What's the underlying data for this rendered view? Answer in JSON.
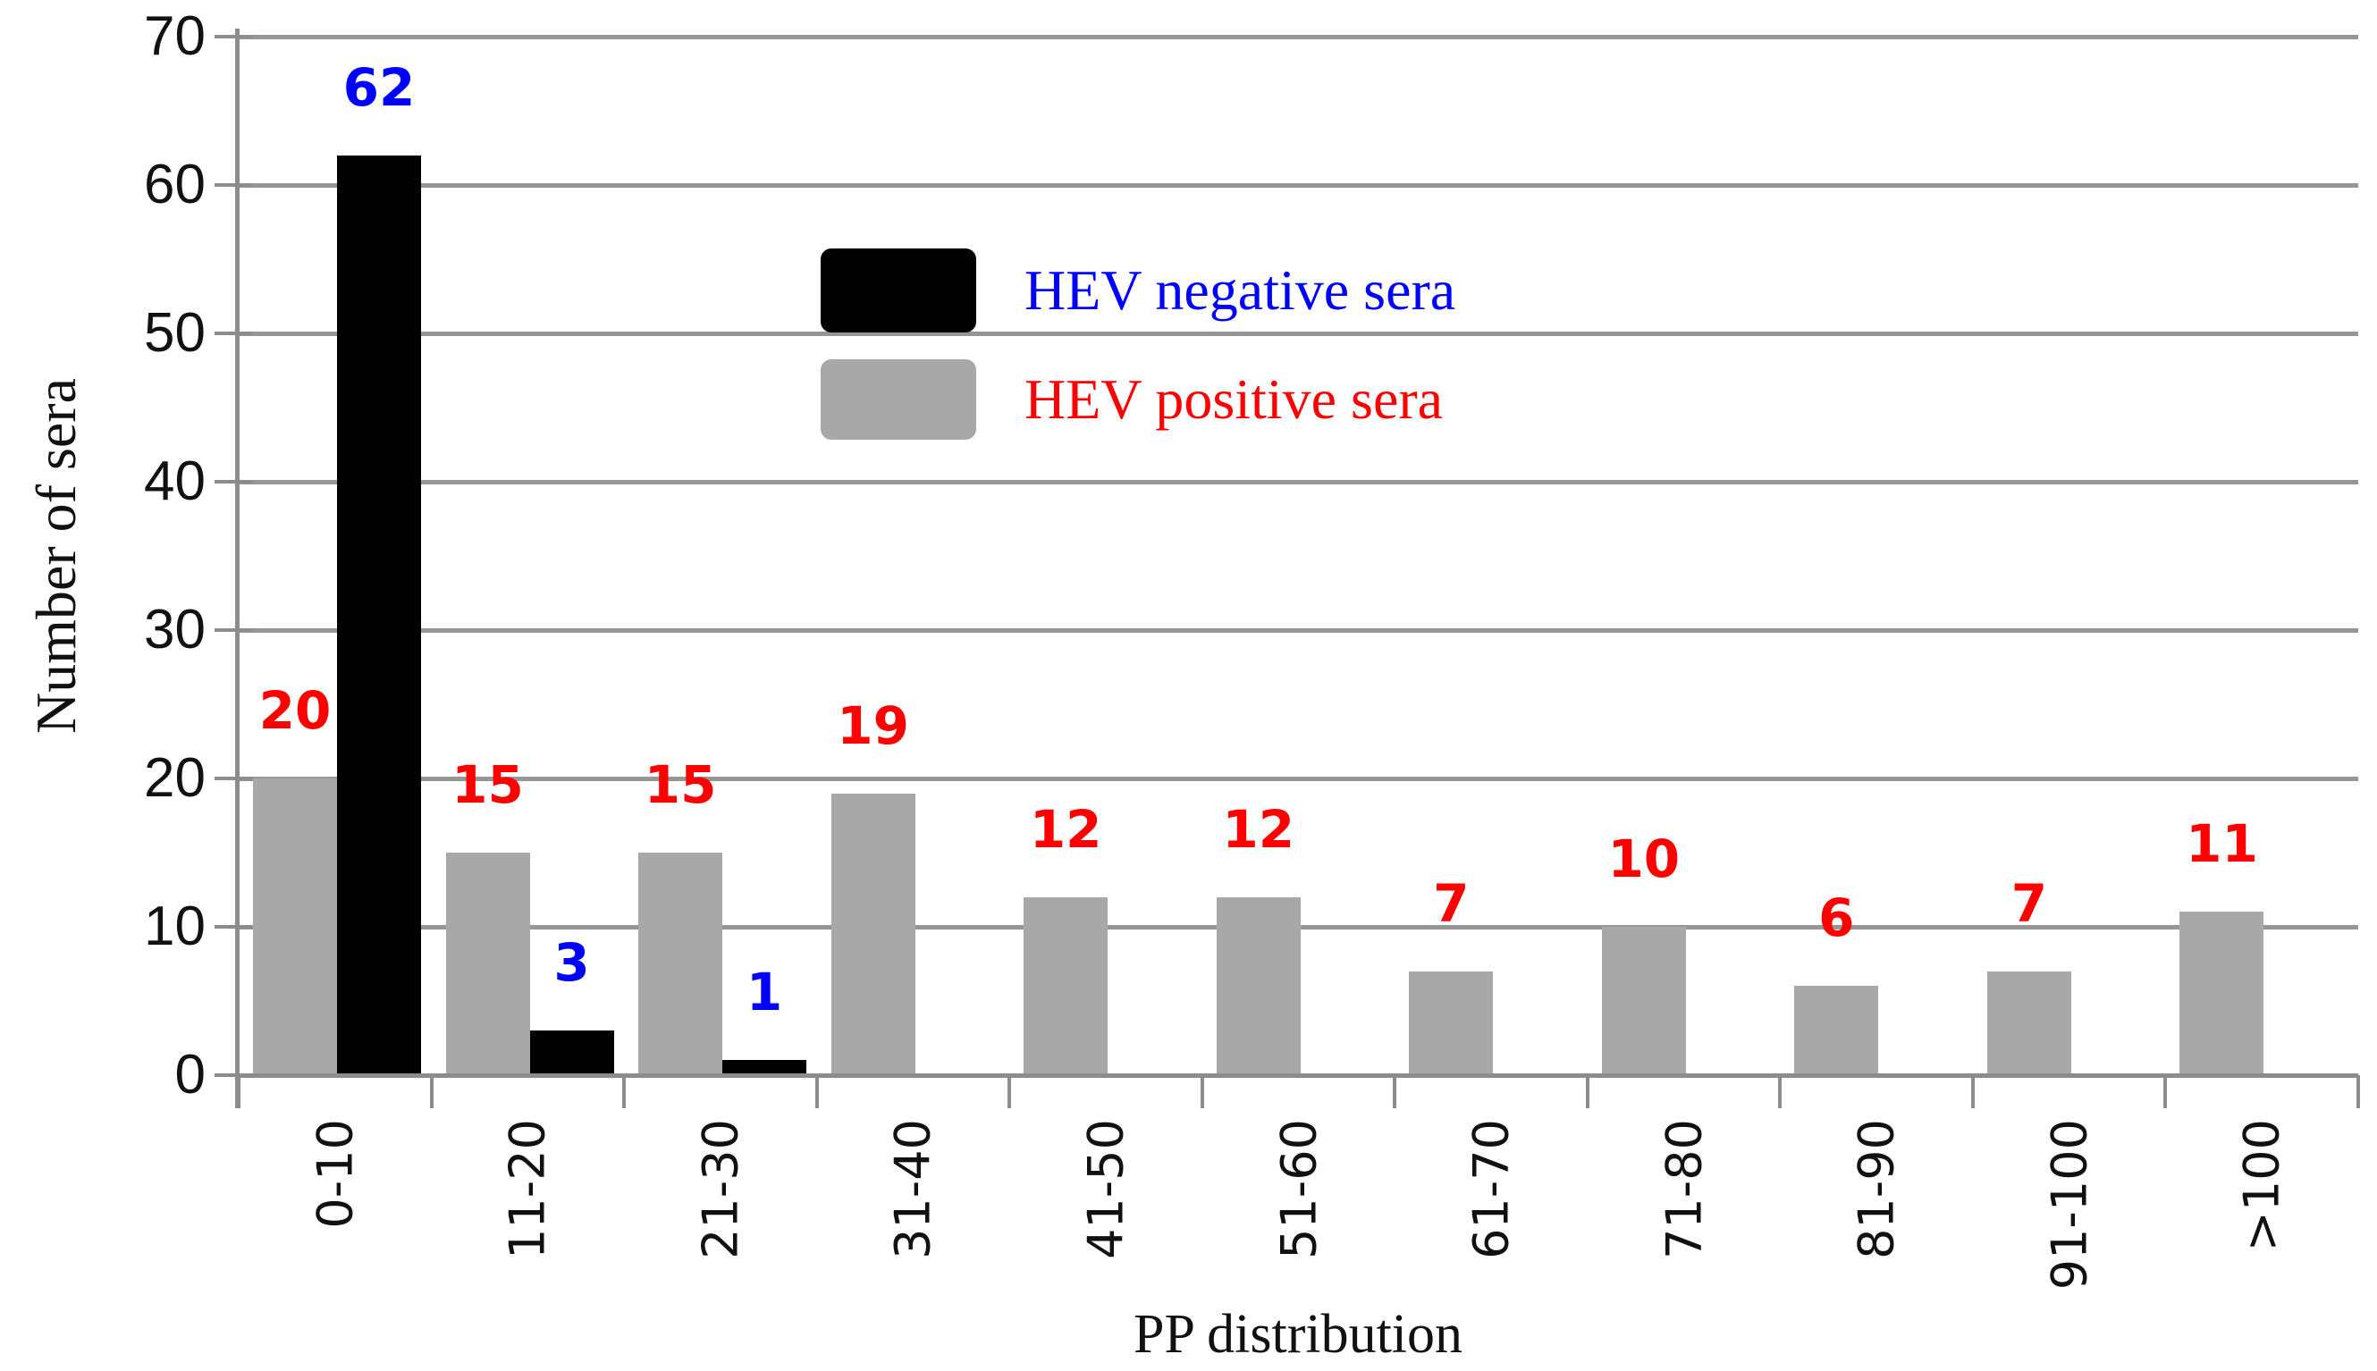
{
  "chart_data": {
    "type": "bar",
    "title": "",
    "xlabel": "PP distribution",
    "ylabel": "Number of sera",
    "categories": [
      "0-10",
      "11-20",
      "21-30",
      "31-40",
      "41-50",
      "51-60",
      "61-70",
      "71-80",
      "81-90",
      "91-100",
      ">100"
    ],
    "series": [
      {
        "name": "HEV positive sera",
        "color": "#a8a8a8",
        "label_color": "#ff0000",
        "values": [
          20,
          15,
          15,
          19,
          12,
          12,
          7,
          10,
          6,
          7,
          11
        ]
      },
      {
        "name": "HEV negative sera",
        "color": "#000000",
        "label_color": "#0000ff",
        "values": [
          62,
          3,
          1,
          0,
          0,
          0,
          0,
          0,
          0,
          0,
          0
        ]
      }
    ],
    "ylim": [
      0,
      70
    ],
    "yticks": [
      0,
      10,
      20,
      30,
      40,
      50,
      60,
      70
    ],
    "grid": "horizontal",
    "legend_position": "upper-left-of-center",
    "legend_order": [
      "HEV negative sera",
      "HEV positive sera"
    ],
    "data_labels_shown_for_zero": false
  }
}
